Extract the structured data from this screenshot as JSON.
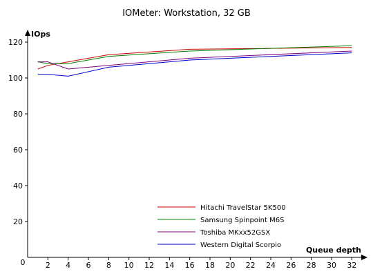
{
  "chart_data": {
    "type": "line",
    "title": "IOMeter: Workstation, 32 GB",
    "ylabel": "IOps",
    "xlabel": "Queue depth",
    "origin_label": "0",
    "x": [
      1,
      2,
      4,
      8,
      16,
      32
    ],
    "xlim": [
      0,
      33
    ],
    "ylim": [
      0,
      120
    ],
    "x_ticks": [
      2,
      4,
      6,
      8,
      10,
      12,
      14,
      16,
      18,
      20,
      22,
      24,
      26,
      28,
      30,
      32
    ],
    "y_ticks": [
      20,
      40,
      60,
      80,
      100,
      120
    ],
    "grid": false,
    "legend_position": "bottom-center",
    "series": [
      {
        "name": "Hitachi TravelStar 5K500",
        "color": "#cc0000",
        "values": [
          105,
          107,
          109,
          113,
          116,
          117
        ]
      },
      {
        "name": "Samsung Spinpoint M6S",
        "color": "#008000",
        "values": [
          109,
          108,
          108,
          112,
          115,
          118
        ]
      },
      {
        "name": "Toshiba MKxx52GSX",
        "color": "#800080",
        "values": [
          109,
          109,
          105,
          107,
          111,
          115
        ]
      },
      {
        "name": "Western Digital Scorpio",
        "color": "#0000cc",
        "values": [
          102,
          102,
          101,
          106,
          110,
          114
        ]
      }
    ]
  }
}
